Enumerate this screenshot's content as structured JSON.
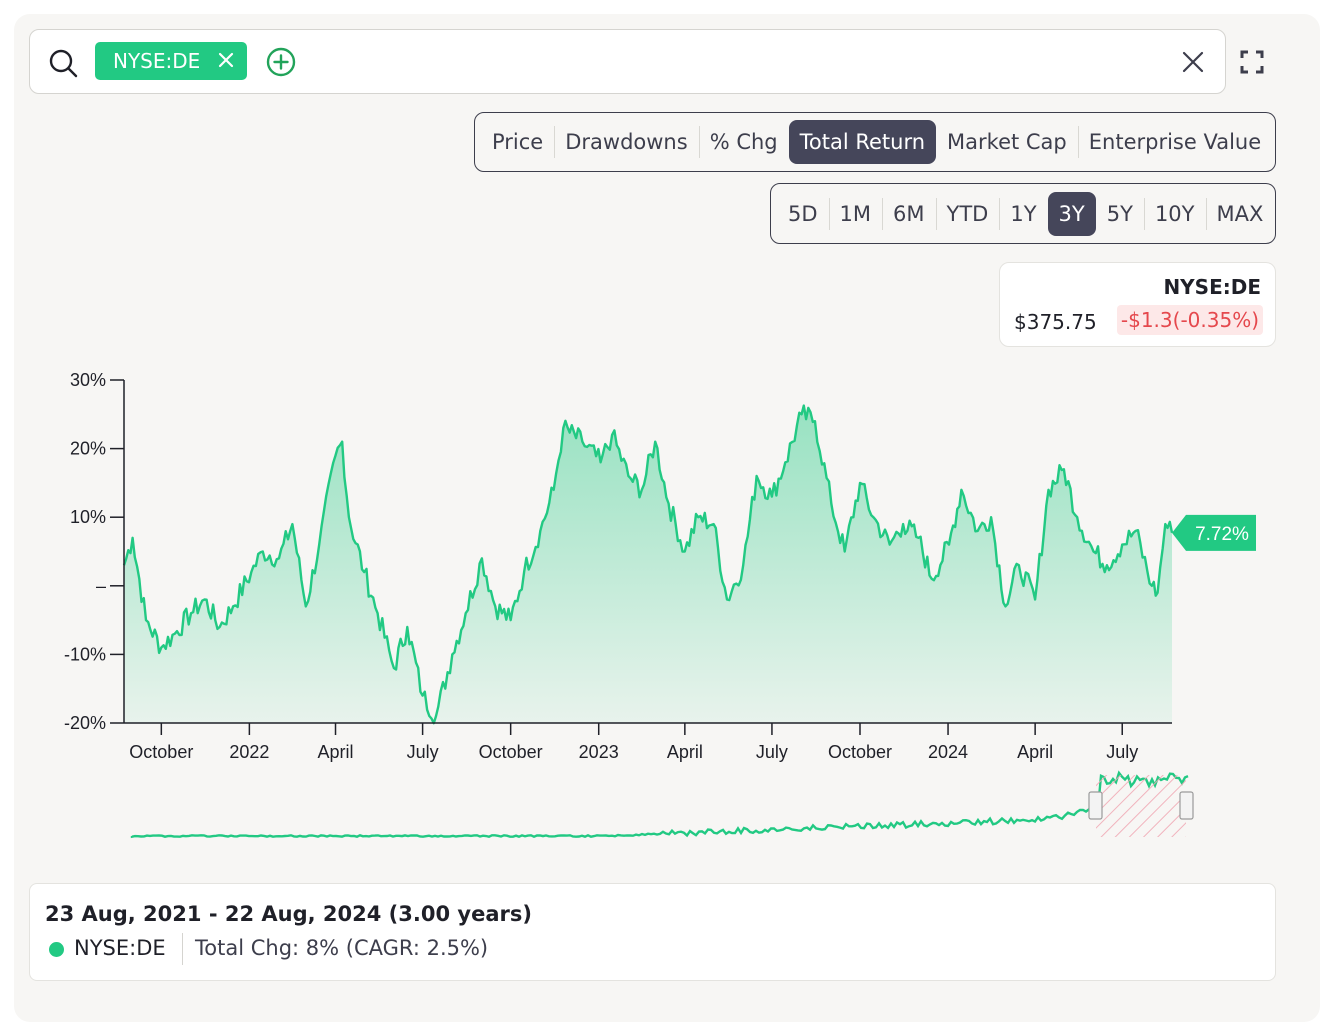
{
  "search": {
    "ticker_chip": "NYSE:DE"
  },
  "metric_tabs": [
    "Price",
    "Drawdowns",
    "% Chg",
    "Total Return",
    "Market Cap",
    "Enterprise Value"
  ],
  "metric_active": "Total Return",
  "range_tabs": [
    "5D",
    "1M",
    "6M",
    "YTD",
    "1Y",
    "3Y",
    "5Y",
    "10Y",
    "MAX"
  ],
  "range_active": "3Y",
  "quote": {
    "symbol": "NYSE:DE",
    "price": "$375.75",
    "change": "-$1.3(-0.35%)"
  },
  "summary": {
    "date_range": "23 Aug, 2021 - 22 Aug, 2024 (3.00 years)",
    "symbol": "NYSE:DE",
    "stat": "Total Chg: 8% (CAGR: 2.5%)"
  },
  "colors": {
    "accent": "#22c983",
    "line": "#22c983",
    "negative": "#e5484d",
    "active_tab": "#45465a"
  },
  "chart_data": {
    "type": "area",
    "series": [
      {
        "name": "NYSE:DE",
        "x": [
          "2021-08-23",
          "2021-09-01",
          "2021-09-15",
          "2021-10-01",
          "2021-10-15",
          "2021-11-01",
          "2021-11-15",
          "2021-12-01",
          "2021-12-15",
          "2022-01-03",
          "2022-01-15",
          "2022-02-01",
          "2022-02-15",
          "2022-03-01",
          "2022-03-15",
          "2022-04-01",
          "2022-04-08",
          "2022-04-15",
          "2022-05-01",
          "2022-05-15",
          "2022-06-01",
          "2022-06-15",
          "2022-07-01",
          "2022-07-15",
          "2022-08-01",
          "2022-08-15",
          "2022-09-01",
          "2022-09-15",
          "2022-10-01",
          "2022-10-15",
          "2022-11-01",
          "2022-11-15",
          "2022-11-25",
          "2022-12-15",
          "2023-01-03",
          "2023-01-15",
          "2023-02-01",
          "2023-02-15",
          "2023-03-01",
          "2023-03-15",
          "2023-04-01",
          "2023-04-15",
          "2023-05-01",
          "2023-05-15",
          "2023-06-01",
          "2023-06-15",
          "2023-07-01",
          "2023-07-15",
          "2023-08-01",
          "2023-08-15",
          "2023-09-01",
          "2023-09-15",
          "2023-10-01",
          "2023-10-15",
          "2023-11-01",
          "2023-11-15",
          "2023-12-01",
          "2023-12-15",
          "2024-01-02",
          "2024-01-15",
          "2024-02-01",
          "2024-02-15",
          "2024-03-01",
          "2024-03-15",
          "2024-04-01",
          "2024-04-15",
          "2024-05-01",
          "2024-05-15",
          "2024-06-01",
          "2024-06-15",
          "2024-07-01",
          "2024-07-15",
          "2024-08-01",
          "2024-08-07",
          "2024-08-15",
          "2024-08-22"
        ],
        "values": [
          3,
          7,
          -5,
          -9,
          -7,
          -4,
          -2,
          -6,
          -3,
          2,
          5,
          4,
          9,
          -3,
          6,
          19,
          21,
          10,
          2,
          -4,
          -12,
          -6,
          -16,
          -19,
          -10,
          -4,
          4,
          -3,
          -5,
          2,
          8,
          14,
          23,
          21,
          18,
          22,
          16,
          14,
          21,
          12,
          5,
          10,
          9,
          -2,
          3,
          16,
          13,
          18,
          25,
          24,
          12,
          5,
          15,
          10,
          6,
          9,
          7,
          1,
          6,
          14,
          8,
          10,
          -3,
          3,
          -2,
          14,
          17,
          10,
          5,
          3,
          6,
          8,
          0,
          -1,
          9,
          7.72
        ]
      }
    ],
    "x_tick_labels": [
      "October",
      "2022",
      "April",
      "July",
      "October",
      "2023",
      "April",
      "July",
      "October",
      "2024",
      "April",
      "July"
    ],
    "y_tick_labels": [
      "30%",
      "20%",
      "10%",
      "–",
      "-10%",
      "-20%"
    ],
    "ylim": [
      -20,
      30
    ],
    "last_value_label": "7.72%",
    "grid": false,
    "legend": "none"
  }
}
